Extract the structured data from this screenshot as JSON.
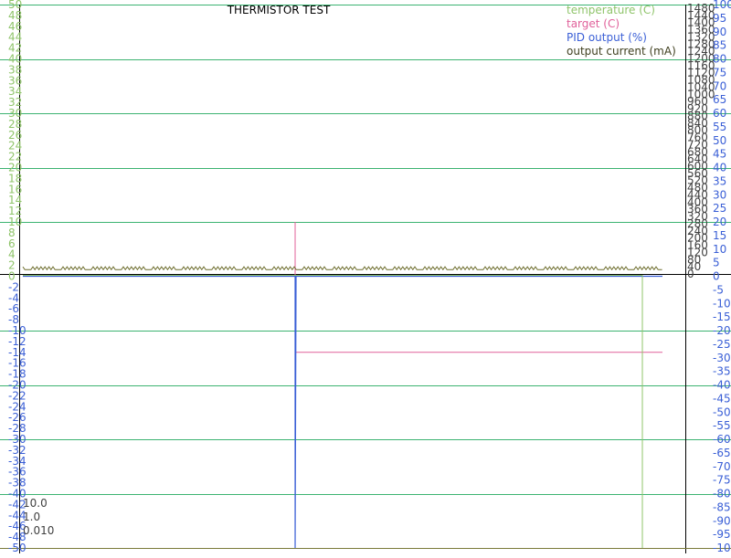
{
  "chart_data": {
    "type": "line",
    "title": "THERMISTOR TEST",
    "legend_position": "top-right",
    "grid": true,
    "colors": {
      "temperature": "#8fc46a",
      "target": "#e0609a",
      "pid_output": "#3a5fd6",
      "output_current": "#6b6b2a",
      "gridline": "#3cb371",
      "axis": "#000000"
    },
    "axes": {
      "left": {
        "ylim": [
          -50,
          50
        ],
        "ticks": [
          50,
          48,
          46,
          44,
          42,
          40,
          38,
          36,
          34,
          32,
          30,
          28,
          26,
          24,
          22,
          20,
          18,
          16,
          14,
          12,
          10,
          8,
          6,
          4,
          2,
          0,
          -2,
          -4,
          -6,
          -8,
          -10,
          -12,
          -14,
          -16,
          -18,
          -20,
          -22,
          -24,
          -26,
          -28,
          -30,
          -32,
          -34,
          -36,
          -38,
          -40,
          -42,
          -44,
          -46,
          -48,
          -50
        ]
      },
      "current": {
        "ylim": [
          0,
          1500
        ],
        "ticks": [
          1480,
          1440,
          1400,
          1360,
          1320,
          1280,
          1240,
          1200,
          1160,
          1120,
          1080,
          1040,
          1000,
          960,
          920,
          880,
          840,
          800,
          760,
          720,
          680,
          640,
          600,
          560,
          520,
          480,
          440,
          400,
          360,
          320,
          280,
          240,
          200,
          160,
          120,
          80,
          40,
          0
        ]
      },
      "pid": {
        "ylim": [
          -100,
          100
        ],
        "ticks": [
          100,
          95,
          90,
          85,
          80,
          75,
          70,
          65,
          60,
          55,
          50,
          45,
          40,
          35,
          30,
          25,
          20,
          15,
          10,
          5,
          0,
          -5,
          -10,
          -15,
          -20,
          -25,
          -30,
          -35,
          -40,
          -45,
          -50,
          -55,
          -60,
          -65,
          -70,
          -75,
          -80,
          -85,
          -90,
          -95,
          -100
        ]
      }
    },
    "series": [
      {
        "name": "temperature (C)",
        "key": "temperature"
      },
      {
        "name": "target (C)",
        "key": "target"
      },
      {
        "name": "PID output (%)",
        "key": "pid_output"
      },
      {
        "name": "output current (mA)",
        "key": "output_current"
      }
    ],
    "parameters": [
      "10.0",
      "1.0",
      "0.010"
    ],
    "data": {
      "target_before_spike": 0,
      "target_spike_peak": 10,
      "target_after_spike": -14,
      "pid_spike_min": -100,
      "pid_baseline": 0,
      "current_baseline": 24,
      "current_ripple_high": 40,
      "temperature_final_drop": -50
    }
  }
}
